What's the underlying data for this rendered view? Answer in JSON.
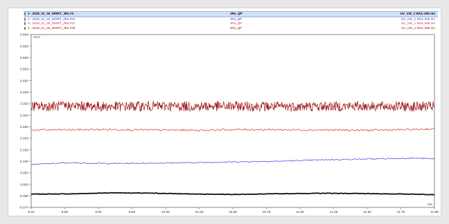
{
  "legend": {
    "header": {
      "name": "1 - 2018_01_26_DIRRT_JRa #3",
      "program": "JRa_QP",
      "channel": "UV_VIS_1 WVL:255 nm"
    },
    "rows": [
      {
        "name": "2 - 2018_01_26_DIRRT_JRa #12",
        "program": "JRa_QP",
        "channel": "UV_VIS_1 WVL:255 nm",
        "color": "#3a3ae0"
      },
      {
        "name": "3 - 2018_01_26_DIRRT_JRa #21",
        "program": "JRa_QP",
        "channel": "UV_VIS_1 WVL:255 nm",
        "color": "#d83030"
      },
      {
        "name": "4 - 2018_01_26_DIRRT_JRa #30",
        "program": "JRa_QP",
        "channel": "UV_VIS_1 WVL:255 nm",
        "color": "#9a1010"
      }
    ]
  },
  "chart_data": {
    "type": "line",
    "ylabel": "mAU",
    "xlabel": "min",
    "xlim": [
      8.24,
      12.0
    ],
    "ylim": [
      -0.074,
      0.694
    ],
    "x_ticks": [
      "8.24",
      "8.50",
      "9.00",
      "9.50",
      "10.00",
      "10.25",
      "10.50",
      "10.75",
      "11.00",
      "11.25",
      "11.50",
      "11.75",
      "11.95"
    ],
    "y_ticks": [
      "0.694",
      "0.600",
      "0.550",
      "0.500",
      "0.450",
      "0.400",
      "0.350",
      "0.300",
      "0.250",
      "0.200",
      "0.150",
      "0.100",
      "0.050",
      "0.000",
      "-0.050",
      "-0.074"
    ],
    "grid": false,
    "series": [
      {
        "name": "1 - 2018_01_26_DIRRT_JRa #3",
        "color": "#111111",
        "x": [
          8.24,
          8.6,
          9.0,
          9.4,
          9.8,
          10.2,
          10.6,
          11.0,
          11.4,
          11.8,
          12.0
        ],
        "values": [
          -0.015,
          -0.014,
          -0.009,
          -0.011,
          -0.015,
          -0.016,
          -0.013,
          -0.011,
          -0.013,
          -0.015,
          -0.017
        ]
      },
      {
        "name": "2 - 2018_01_26_DIRRT_JRa #12",
        "color": "#3a3ae0",
        "x": [
          8.24,
          8.6,
          9.0,
          9.4,
          9.8,
          10.2,
          10.6,
          11.0,
          11.4,
          11.8,
          12.0
        ],
        "values": [
          0.117,
          0.124,
          0.121,
          0.123,
          0.125,
          0.129,
          0.132,
          0.138,
          0.141,
          0.145,
          0.142
        ]
      },
      {
        "name": "3 - 2018_01_26_DIRRT_JRa #21",
        "color": "#d83030",
        "x": [
          8.24,
          8.6,
          9.0,
          9.4,
          9.8,
          10.2,
          10.6,
          11.0,
          11.4,
          11.8,
          12.0
        ],
        "values": [
          0.27,
          0.271,
          0.272,
          0.27,
          0.269,
          0.272,
          0.271,
          0.27,
          0.269,
          0.272,
          0.275
        ]
      },
      {
        "name": "4 - 2018_01_26_DIRRT_JRa #30",
        "color": "#9a1010",
        "x": [
          8.24,
          8.6,
          9.0,
          9.4,
          9.8,
          10.2,
          10.6,
          11.0,
          11.4,
          11.8,
          12.0
        ],
        "values": [
          0.375,
          0.377,
          0.374,
          0.376,
          0.375,
          0.376,
          0.374,
          0.375,
          0.376,
          0.374,
          0.375
        ]
      }
    ]
  }
}
